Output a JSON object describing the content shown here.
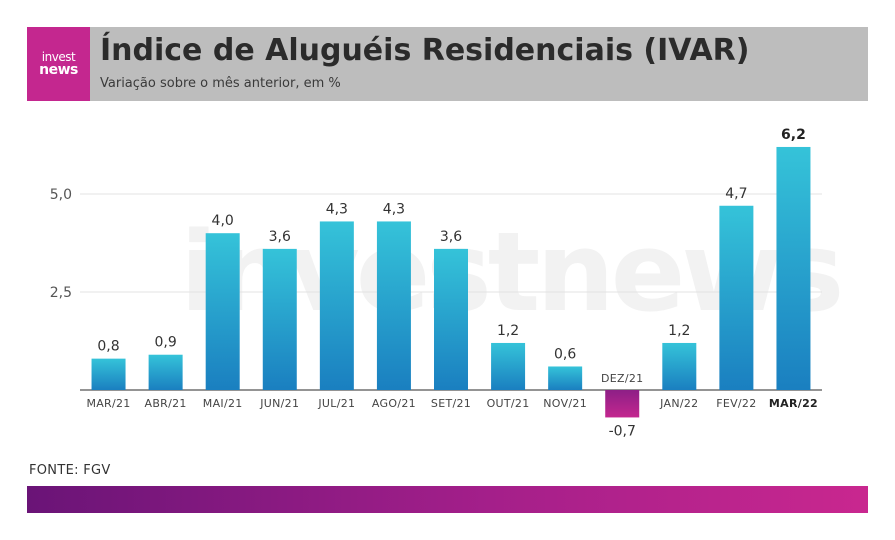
{
  "header": {
    "logo_line1": "invest",
    "logo_line2": "news",
    "title": "Índice de Aluguéis Residenciais (IVAR)",
    "subtitle": "Variação sobre o mês anterior, em %"
  },
  "footer": {
    "source": "FONTE: FGV"
  },
  "watermark": "investnews",
  "colors": {
    "header_bg": "#bdbdbd",
    "logo_bg": "#c4278f",
    "bar_positive_top": "#35c3d9",
    "bar_positive_bottom": "#1a7fc0",
    "bar_negative": "#b0278f"
  },
  "chart_data": {
    "type": "bar",
    "categories": [
      "MAR/21",
      "ABR/21",
      "MAI/21",
      "JUN/21",
      "JUL/21",
      "AGO/21",
      "SET/21",
      "OUT/21",
      "NOV/21",
      "DEZ/21",
      "JAN/22",
      "FEV/22",
      "MAR/22"
    ],
    "values": [
      0.8,
      0.9,
      4.0,
      3.6,
      4.3,
      4.3,
      3.6,
      1.2,
      0.6,
      -0.7,
      1.2,
      4.7,
      6.2
    ],
    "value_labels": [
      "0,8",
      "0,9",
      "4,0",
      "3,6",
      "4,3",
      "4,3",
      "3,6",
      "1,2",
      "0,6",
      "-0,7",
      "1,2",
      "4,7",
      "6,2"
    ],
    "y_ticks": [
      2.5,
      5.0
    ],
    "y_tick_labels": [
      "2,5",
      "5,0"
    ],
    "ylim": [
      -1,
      6.5
    ],
    "highlight_index": 12,
    "title": "Índice de Aluguéis Residenciais (IVAR)",
    "xlabel": "",
    "ylabel": "",
    "grid": true
  }
}
